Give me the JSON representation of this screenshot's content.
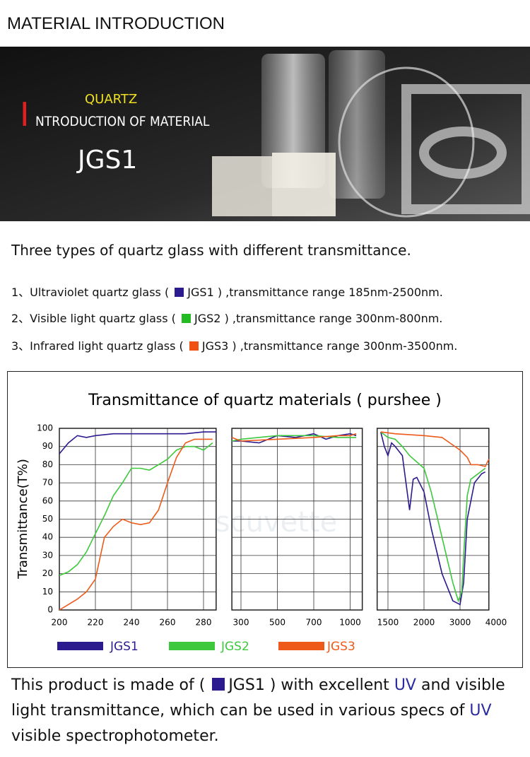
{
  "header": {
    "title": "MATERIAL INTRODUCTION"
  },
  "banner": {
    "kicker": "QUARTZ",
    "initial": "I",
    "heading": "NTRODUCTION OF MATERIAL",
    "code": "JGS1"
  },
  "intro": {
    "title": "Three types of quartz glass with different transmittance.",
    "items": [
      {
        "prefix": "1、Ultraviolet quartz glass (",
        "code": "JGS1",
        "suffix": ") ,transmittance range 185nm-2500nm."
      },
      {
        "prefix": "2、Visible light quartz glass (",
        "code": "JGS2",
        "suffix": ") ,transmittance range 300nm-800nm."
      },
      {
        "prefix": "3、Infrared light quartz glass (",
        "code": "JGS3",
        "suffix": ") ,transmittance range 300nm-3500nm."
      }
    ]
  },
  "chart_data": {
    "type": "line",
    "title": "Transmittance of quartz materials ( purshee )",
    "y_label": "Transmittance(T%)",
    "watermark": "scuvette",
    "grid": true,
    "ylim": [
      0,
      100
    ],
    "yticks": [
      0,
      10,
      20,
      30,
      40,
      50,
      60,
      70,
      80,
      90,
      100
    ],
    "series": [
      {
        "name": "JGS1",
        "color": "#2b1b8e"
      },
      {
        "name": "JGS2",
        "color": "#3ec83e"
      },
      {
        "name": "JGS3",
        "color": "#ee5a1a"
      }
    ],
    "panels": [
      {
        "xlim": [
          200,
          287
        ],
        "xticks": [
          200,
          220,
          240,
          260,
          280
        ],
        "series": [
          {
            "x": [
              200,
              205,
              210,
              215,
              220,
              230,
              240,
              250,
              260,
              270,
              280,
              287
            ],
            "values": [
              86,
              92,
              96,
              95,
              96,
              97,
              97,
              97,
              97,
              97,
              98,
              98
            ]
          },
          {
            "x": [
              200,
              205,
              210,
              215,
              220,
              225,
              230,
              235,
              240,
              245,
              250,
              255,
              260,
              265,
              270,
              275,
              280,
              285
            ],
            "values": [
              19,
              21,
              25,
              32,
              42,
              52,
              63,
              70,
              78,
              78,
              77,
              80,
              83,
              88,
              90,
              90,
              88,
              92
            ]
          },
          {
            "x": [
              200,
              205,
              210,
              215,
              220,
              225,
              230,
              235,
              240,
              245,
              250,
              255,
              260,
              265,
              270,
              275,
              280,
              285
            ],
            "values": [
              0,
              3,
              6,
              10,
              17,
              40,
              46,
              50,
              48,
              47,
              48,
              55,
              70,
              84,
              92,
              94,
              94,
              94
            ]
          }
        ]
      },
      {
        "xlim": [
          250,
          1100
        ],
        "xticks": [
          300,
          500,
          700,
          1000
        ],
        "series": [
          {
            "x": [
              250,
              300,
              400,
              500,
              600,
              700,
              800,
              900,
              1000,
              1050
            ],
            "values": [
              93,
              93,
              92,
              96,
              95,
              97,
              94,
              96,
              97,
              96
            ]
          },
          {
            "x": [
              250,
              300,
              500,
              700,
              900,
              1000,
              1050
            ],
            "values": [
              93,
              94,
              96,
              96,
              95,
              95,
              95
            ]
          },
          {
            "x": [
              250,
              300,
              500,
              700,
              900,
              1000,
              1050
            ],
            "values": [
              95,
              93,
              94,
              95,
              96,
              96,
              97
            ]
          }
        ]
      },
      {
        "xlim": [
          1350,
          3800
        ],
        "xticks": [
          1500,
          2000,
          3000,
          4000
        ],
        "series": [
          {
            "x": [
              1400,
              1450,
              1500,
              1550,
              1600,
              1700,
              1750,
              1800,
              1850,
              1900,
              2000,
              2200,
              2500,
              2800,
              3000,
              3100,
              3200,
              3400,
              3600,
              3700
            ],
            "values": [
              98,
              90,
              85,
              92,
              90,
              85,
              70,
              55,
              72,
              73,
              65,
              45,
              20,
              5,
              3,
              15,
              50,
              70,
              75,
              76
            ]
          },
          {
            "x": [
              1400,
              1500,
              1600,
              1700,
              1800,
              2000,
              2200,
              2500,
              2800,
              2950,
              3050,
              3100,
              3200,
              3300,
              3500,
              3700
            ],
            "values": [
              98,
              95,
              94,
              90,
              85,
              78,
              65,
              40,
              15,
              5,
              10,
              30,
              63,
              72,
              75,
              78
            ]
          },
          {
            "x": [
              1400,
              1600,
              2000,
              2500,
              3000,
              3200,
              3300,
              3500,
              3700,
              3800
            ],
            "values": [
              98,
              97,
              96,
              95,
              88,
              84,
              80,
              80,
              79,
              83
            ]
          }
        ]
      }
    ]
  },
  "conclusion": {
    "p1": "This product is made of (",
    "code": "JGS1",
    "p2": ") with excellent",
    "uv1": "UV",
    "p3": "and visible light transmittance, which can be used in various specs of",
    "uv2": "UV",
    "p4": "visible spectrophotometer."
  }
}
